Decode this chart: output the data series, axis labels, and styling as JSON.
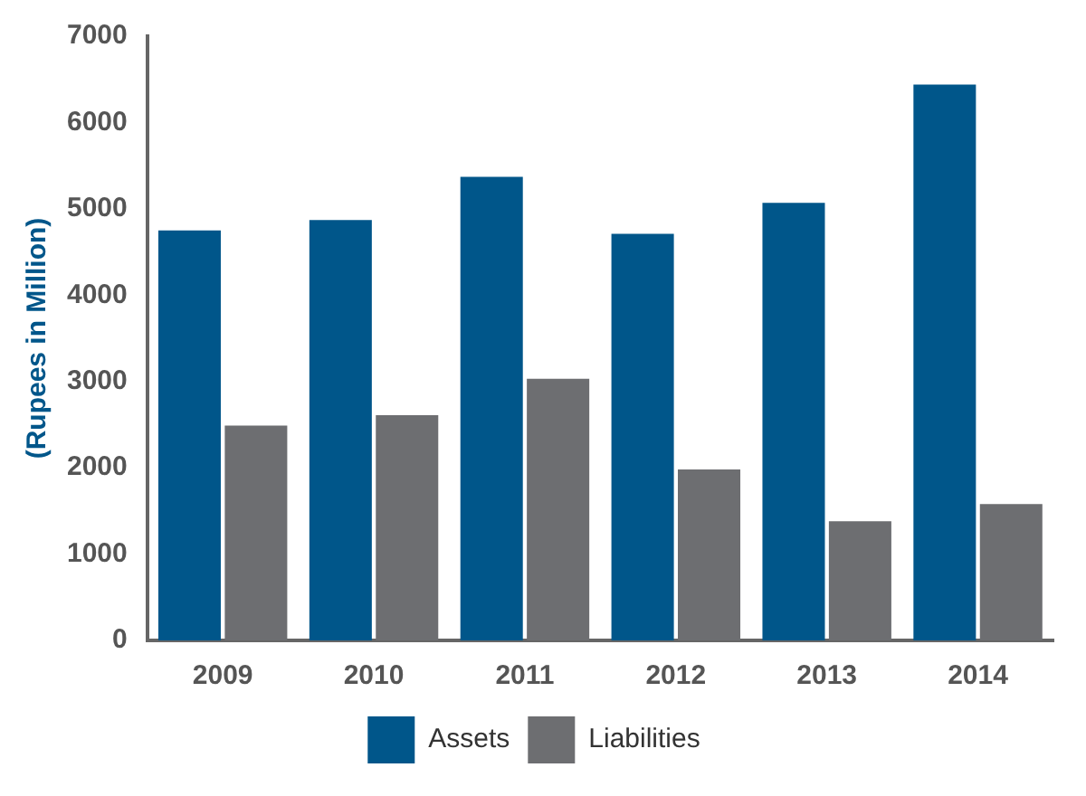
{
  "chart_data": {
    "type": "bar",
    "ylabel": "(Rupees in Million)",
    "categories": [
      "2009",
      "2010",
      "2011",
      "2012",
      "2013",
      "2014"
    ],
    "series": [
      {
        "name": "Assets",
        "color": "#00568a",
        "values": [
          4750,
          4870,
          5370,
          4710,
          5070,
          6440
        ]
      },
      {
        "name": "Liabilities",
        "color": "#6d6e71",
        "values": [
          2490,
          2610,
          3030,
          1980,
          1380,
          1580
        ]
      }
    ],
    "ylim": [
      0,
      7000
    ],
    "yticks": [
      0,
      1000,
      2000,
      3000,
      4000,
      5000,
      6000,
      7000
    ],
    "grid": false,
    "legend": "bottom"
  }
}
